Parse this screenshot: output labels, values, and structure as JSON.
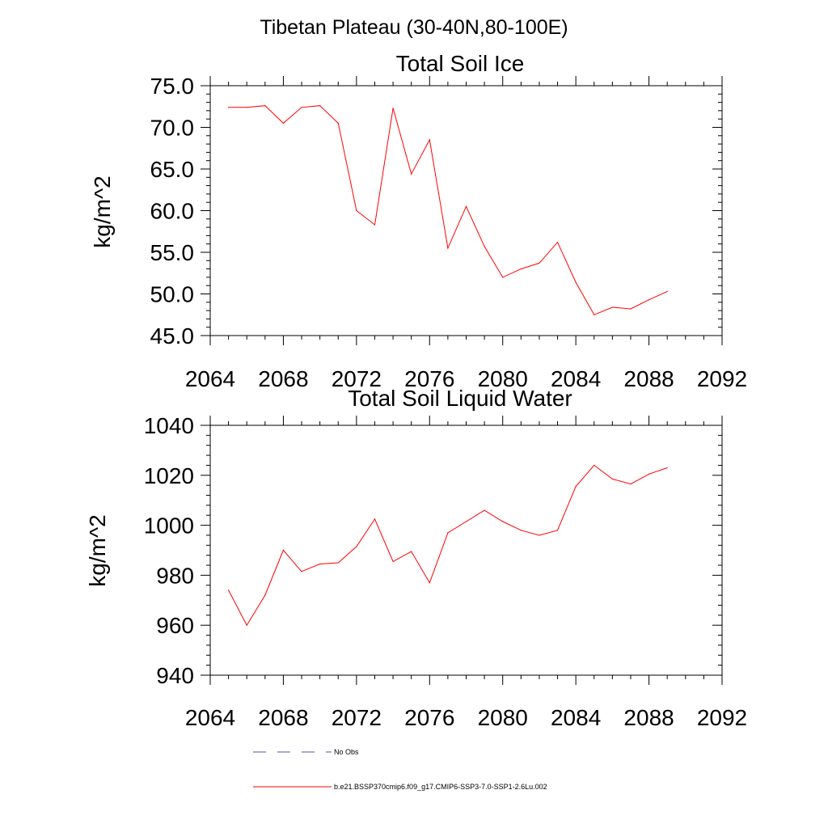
{
  "page_title": "Tibetan Plateau (30-40N,80-100E)",
  "chart_data": [
    {
      "type": "line",
      "title": "Total Soil Ice",
      "xlabel": "",
      "ylabel": "kg/m^2",
      "xlim": [
        2064,
        2092
      ],
      "ylim": [
        45,
        75
      ],
      "x_ticks": [
        "2064",
        "2068",
        "2072",
        "2076",
        "2080",
        "2084",
        "2088",
        "2092"
      ],
      "y_ticks": [
        "45.0",
        "50.0",
        "55.0",
        "60.0",
        "65.0",
        "70.0",
        "75.0"
      ],
      "series": [
        {
          "name": "b.e21.BSSP370cmip6.f09_g17.CMIP6-SSP3-7.0-SSP1-2.6Lu.002",
          "color": "#ff0000",
          "x": [
            2065,
            2066,
            2067,
            2068,
            2069,
            2070,
            2071,
            2072,
            2073,
            2074,
            2075,
            2076,
            2077,
            2078,
            2079,
            2080,
            2081,
            2082,
            2083,
            2084,
            2085,
            2086,
            2087,
            2088,
            2089
          ],
          "values": [
            72.4,
            72.4,
            72.6,
            70.5,
            72.4,
            72.6,
            70.5,
            60.0,
            58.3,
            72.3,
            64.4,
            68.5,
            55.5,
            60.5,
            55.7,
            52.0,
            53.0,
            53.7,
            56.2,
            51.4,
            47.5,
            48.4,
            48.2,
            49.3,
            50.3
          ]
        }
      ]
    },
    {
      "type": "line",
      "title": "Total Soil Liquid Water",
      "xlabel": "",
      "ylabel": "kg/m^2",
      "xlim": [
        2064,
        2092
      ],
      "ylim": [
        940,
        1040
      ],
      "x_ticks": [
        "2064",
        "2068",
        "2072",
        "2076",
        "2080",
        "2084",
        "2088",
        "2092"
      ],
      "y_ticks": [
        "940",
        "960",
        "980",
        "1000",
        "1020",
        "1040"
      ],
      "series": [
        {
          "name": "b.e21.BSSP370cmip6.f09_g17.CMIP6-SSP3-7.0-SSP1-2.6Lu.002",
          "color": "#ff0000",
          "x": [
            2065,
            2066,
            2067,
            2068,
            2069,
            2070,
            2071,
            2072,
            2073,
            2074,
            2075,
            2076,
            2077,
            2078,
            2079,
            2080,
            2081,
            2082,
            2083,
            2084,
            2085,
            2086,
            2087,
            2088,
            2089
          ],
          "values": [
            974,
            960,
            972,
            990,
            981.5,
            984.5,
            985,
            991.5,
            1002.5,
            985.5,
            989.5,
            977,
            997,
            1001.5,
            1006,
            1001.5,
            998,
            996,
            998,
            1015.5,
            1024,
            1018.5,
            1016.5,
            1020.5,
            1023
          ]
        }
      ]
    }
  ],
  "legend": {
    "items": [
      {
        "label": "No Obs",
        "color": "#4a5aa8",
        "style": "dashed"
      },
      {
        "label": "b.e21.BSSP370cmip6.f09_g17.CMIP6-SSP3-7.0-SSP1-2.6Lu.002",
        "color": "#ff0000",
        "style": "solid"
      }
    ]
  }
}
